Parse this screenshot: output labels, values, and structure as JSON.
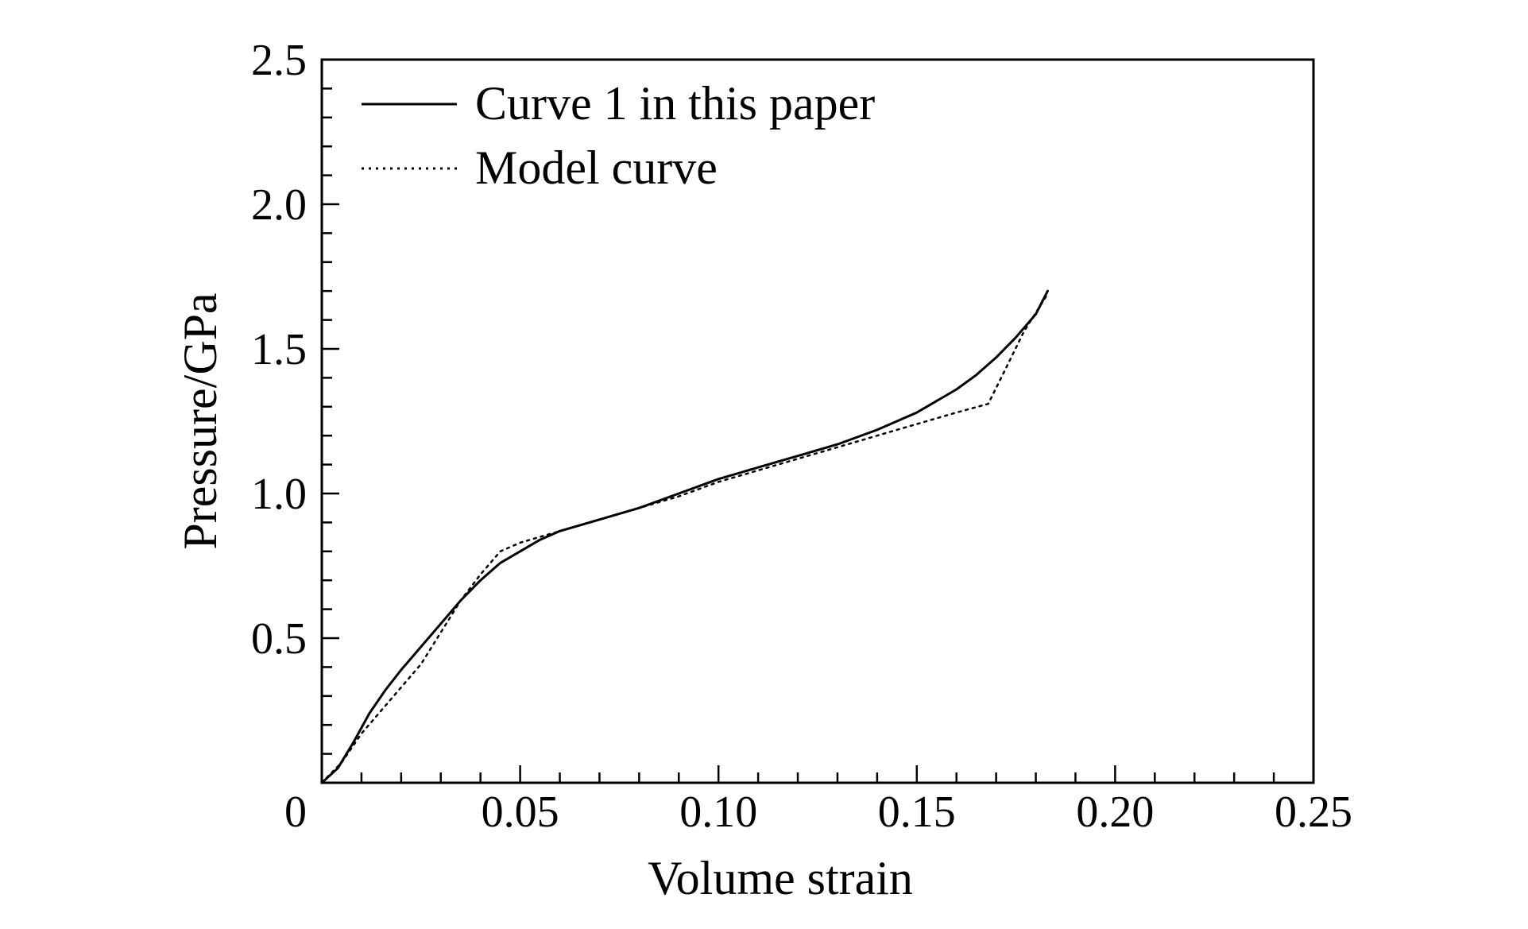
{
  "chart_data": {
    "type": "line",
    "title": "",
    "xlabel": "Volume strain",
    "ylabel": "Pressure/GPa",
    "xlim": [
      0,
      0.25
    ],
    "ylim": [
      0,
      2.5
    ],
    "x_ticks": [
      "0",
      "0.05",
      "0.10",
      "0.15",
      "0.20",
      "0.25"
    ],
    "x_tick_values": [
      0,
      0.05,
      0.1,
      0.15,
      0.2,
      0.25
    ],
    "y_ticks": [
      "0.5",
      "1.0",
      "1.5",
      "2.0",
      "2.5"
    ],
    "y_tick_values": [
      0.5,
      1.0,
      1.5,
      2.0,
      2.5
    ],
    "origin_label": "0",
    "x_minor_step": 0.01,
    "y_minor_step": 0.1,
    "grid": false,
    "legend_position": "top-left",
    "series": [
      {
        "name": "Curve 1 in this paper",
        "style": "solid",
        "color": "#000000",
        "x": [
          0,
          0.004,
          0.008,
          0.012,
          0.016,
          0.02,
          0.025,
          0.03,
          0.035,
          0.04,
          0.045,
          0.05,
          0.055,
          0.06,
          0.07,
          0.08,
          0.09,
          0.1,
          0.11,
          0.12,
          0.13,
          0.14,
          0.15,
          0.155,
          0.16,
          0.165,
          0.17,
          0.175,
          0.18,
          0.183
        ],
        "y": [
          0,
          0.05,
          0.14,
          0.24,
          0.32,
          0.39,
          0.47,
          0.55,
          0.63,
          0.7,
          0.76,
          0.8,
          0.84,
          0.87,
          0.91,
          0.95,
          1.0,
          1.05,
          1.09,
          1.13,
          1.17,
          1.22,
          1.28,
          1.32,
          1.36,
          1.41,
          1.47,
          1.54,
          1.62,
          1.7
        ]
      },
      {
        "name": "Model curve",
        "style": "dotted",
        "color": "#000000",
        "x": [
          0,
          0.005,
          0.01,
          0.015,
          0.02,
          0.025,
          0.03,
          0.035,
          0.04,
          0.045,
          0.05,
          0.06,
          0.07,
          0.08,
          0.09,
          0.1,
          0.11,
          0.12,
          0.13,
          0.14,
          0.15,
          0.16,
          0.168,
          0.172,
          0.177,
          0.183
        ],
        "y": [
          0,
          0.07,
          0.17,
          0.25,
          0.33,
          0.41,
          0.52,
          0.63,
          0.72,
          0.8,
          0.83,
          0.87,
          0.91,
          0.95,
          0.99,
          1.04,
          1.08,
          1.12,
          1.16,
          1.2,
          1.24,
          1.28,
          1.31,
          1.42,
          1.56,
          1.69
        ]
      }
    ]
  }
}
